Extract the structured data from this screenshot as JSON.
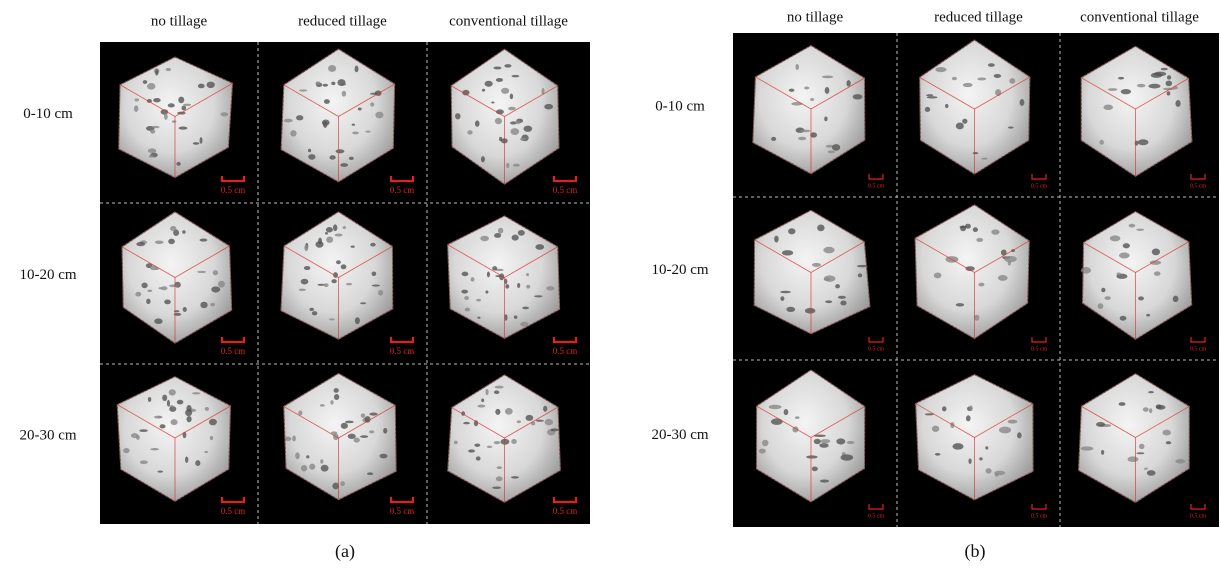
{
  "panels": [
    {
      "label": "(a)",
      "columns": [
        "no tillage",
        "reduced tillage",
        "conventional tillage"
      ],
      "rows": [
        "0-10 cm",
        "10-20 cm",
        "20-30 cm"
      ],
      "scale_labels": [
        [
          "0.5 cm",
          "0.5 cm",
          "0.5 cm"
        ],
        [
          "0.5 cm",
          "0.5 cm",
          "0.5 cm"
        ],
        [
          "0.5 cm",
          "0.5 cm",
          "0.5 cm"
        ]
      ]
    },
    {
      "label": "(b)",
      "columns": [
        "no tillage",
        "reduced tillage",
        "conventional tillage"
      ],
      "rows": [
        "0-10 cm",
        "10-20 cm",
        "20-30 cm"
      ],
      "scale_labels": [
        [
          "0.5 cm",
          "0.5 cm",
          "0.5 cm"
        ],
        [
          "0.5 cm",
          "0.5 cm",
          "0.5 cm"
        ],
        [
          "0.5 cm",
          "0.5 cm",
          "0.5 cm"
        ]
      ]
    }
  ]
}
